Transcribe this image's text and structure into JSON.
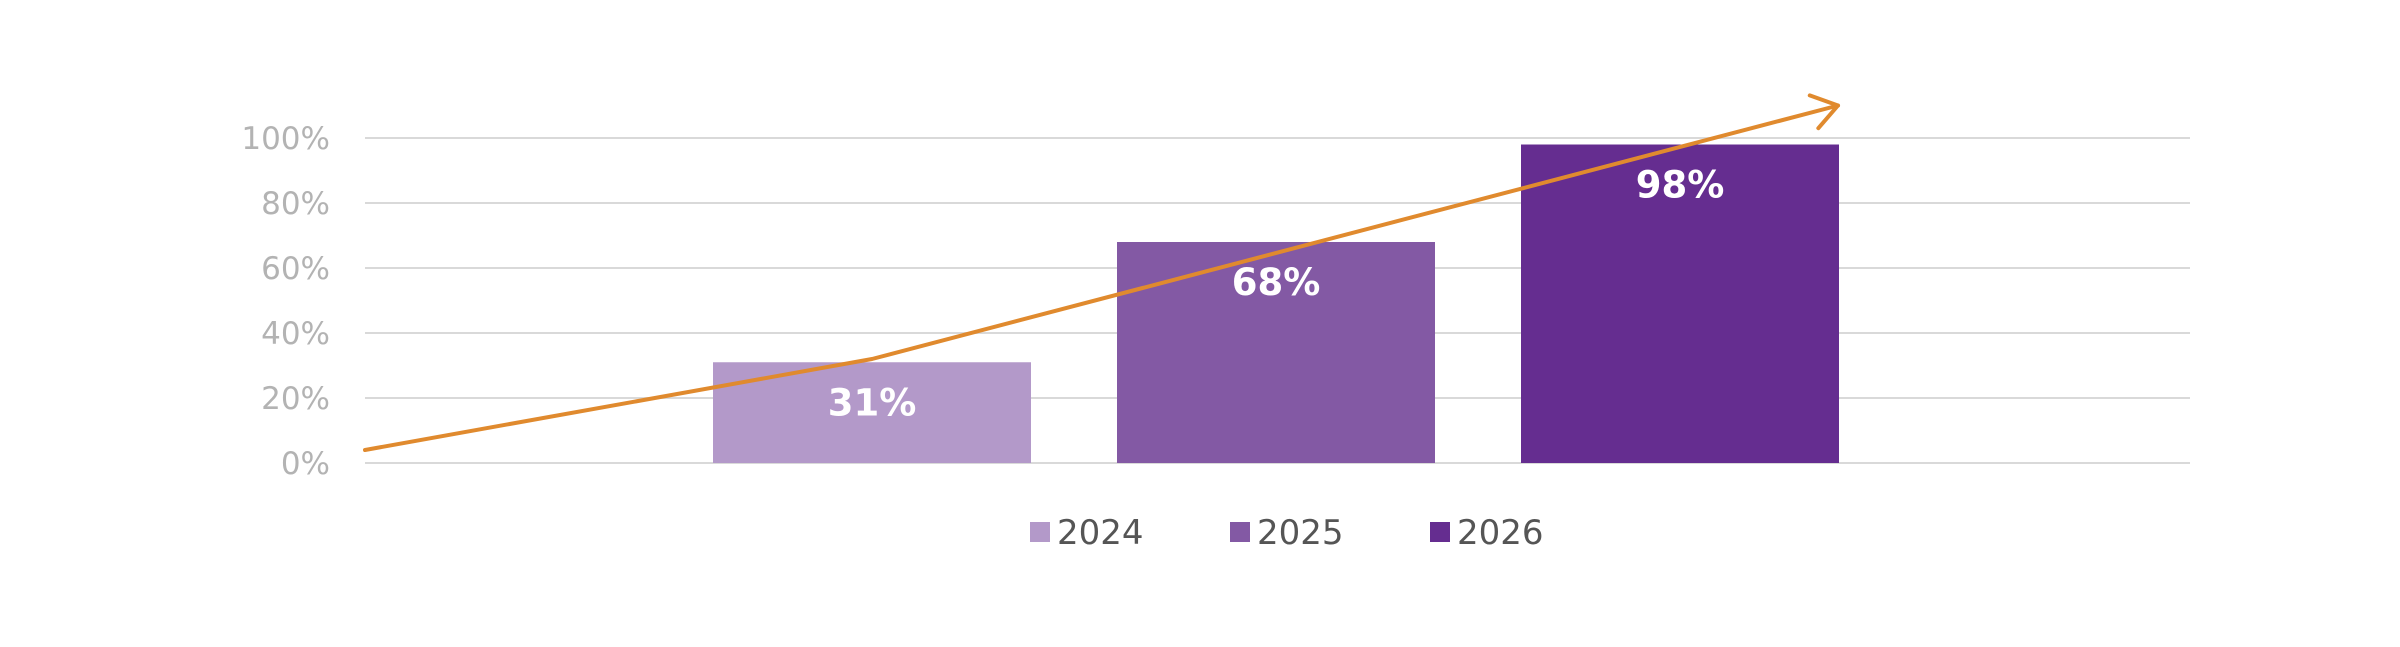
{
  "chart_data": {
    "type": "bar",
    "title": "",
    "xlabel": "",
    "ylabel": "",
    "ylim": [
      0,
      100
    ],
    "y_ticks": [
      {
        "value": 0,
        "label": "0%"
      },
      {
        "value": 20,
        "label": "20%"
      },
      {
        "value": 40,
        "label": "40%"
      },
      {
        "value": 60,
        "label": "60%"
      },
      {
        "value": 80,
        "label": "80%"
      },
      {
        "value": 100,
        "label": "100%"
      }
    ],
    "grid": true,
    "legend": "bottom-center",
    "series": [
      {
        "name": "2024",
        "value": 31,
        "label": "31%",
        "color": "#b399c9"
      },
      {
        "name": "2025",
        "value": 68,
        "label": "68%",
        "color": "#8359a4"
      },
      {
        "name": "2026",
        "value": 98,
        "label": "98%",
        "color": "#652d90"
      }
    ],
    "trend_arrow": {
      "color": "#e08a2e",
      "points": [
        {
          "position": "start",
          "y": 4
        },
        {
          "position": "2024",
          "y": 32
        },
        {
          "position": "2026-end",
          "y": 110
        }
      ]
    }
  }
}
